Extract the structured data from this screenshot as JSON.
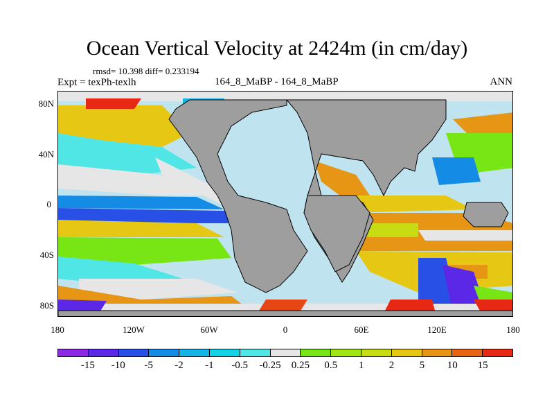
{
  "title": "Ocean Vertical Velocity at 2424m (in cm/day)",
  "stats": "rmsd= 10.398 diff= 0.233194",
  "experiment": "Expt = texPh-texlh",
  "case_label": "164_8_MaBP - 164_8_MaBP",
  "season": "ANN",
  "map": {
    "land_color": "#9e9e9e",
    "y_ticks": [
      "80N",
      "40N",
      "0",
      "40S",
      "80S"
    ],
    "x_ticks": [
      "180",
      "120W",
      "60W",
      "0",
      "60E",
      "120E",
      "180"
    ]
  },
  "colorbar": {
    "colors": [
      "#8c28e6",
      "#5a28e6",
      "#2850e6",
      "#148ce6",
      "#14b4e6",
      "#14d2e6",
      "#50e6e6",
      "#e6e6e6",
      "#78e614",
      "#a0e614",
      "#c8dc14",
      "#e6c814",
      "#e69614",
      "#e66414",
      "#e62814"
    ],
    "labels": [
      "-15",
      "-10",
      "-5",
      "-2",
      "-1",
      "-0.5",
      "-0.25",
      "0.25",
      "0.5",
      "1",
      "2",
      "5",
      "10",
      "15"
    ]
  }
}
